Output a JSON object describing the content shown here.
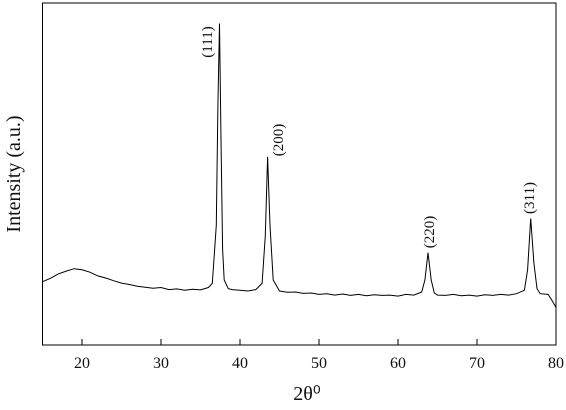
{
  "chart_data": {
    "type": "line",
    "xlabel": "2θ⁰",
    "ylabel": "Intensity (a.u.)",
    "annotations": [
      "(111)",
      "(200)",
      "(220)",
      "(311)"
    ],
    "x": [
      15,
      16,
      17,
      18,
      19,
      20,
      21,
      22,
      23,
      24,
      25,
      26,
      27,
      28,
      29,
      30,
      31,
      32,
      33,
      34,
      35,
      36,
      36.5,
      37,
      37.2,
      37.4,
      37.6,
      37.8,
      38,
      38.5,
      39,
      40,
      41,
      42,
      42.8,
      43.2,
      43.5,
      43.8,
      44.2,
      45,
      46,
      47,
      48,
      49,
      50,
      51,
      52,
      53,
      54,
      55,
      56,
      57,
      58,
      59,
      60,
      61,
      62,
      63,
      63.4,
      63.8,
      64.2,
      64.6,
      65,
      66,
      67,
      68,
      69,
      70,
      71,
      72,
      73,
      74,
      75,
      76,
      76.4,
      76.8,
      77.2,
      77.6,
      78,
      79,
      79.5,
      80
    ],
    "values": [
      18.5,
      19.5,
      20.8,
      21.6,
      22.3,
      22.0,
      21.3,
      20.2,
      19.6,
      18.8,
      18.1,
      17.7,
      17.2,
      16.9,
      16.6,
      16.8,
      16.2,
      16.4,
      16.0,
      16.3,
      16.1,
      16.8,
      18,
      35,
      70,
      94,
      60,
      28,
      19,
      16.5,
      16.2,
      16.0,
      15.8,
      16.2,
      18,
      32,
      55,
      35,
      19,
      15.8,
      15.4,
      15.5,
      15.1,
      15.2,
      14.8,
      15.0,
      14.6,
      14.9,
      14.5,
      14.8,
      14.4,
      14.7,
      14.5,
      14.6,
      14.3,
      14.8,
      14.6,
      15.5,
      19,
      27,
      19,
      15.2,
      14.6,
      14.5,
      14.8,
      14.4,
      14.6,
      14.3,
      14.7,
      14.5,
      14.8,
      14.6,
      15.0,
      16,
      22,
      37,
      24,
      16.5,
      15,
      14.8,
      13,
      11
    ],
    "color": "#000000",
    "xlim": [
      15,
      80
    ],
    "xticks": [
      20,
      30,
      40,
      50,
      60,
      70,
      80
    ],
    "ylim": [
      0,
      100
    ]
  }
}
